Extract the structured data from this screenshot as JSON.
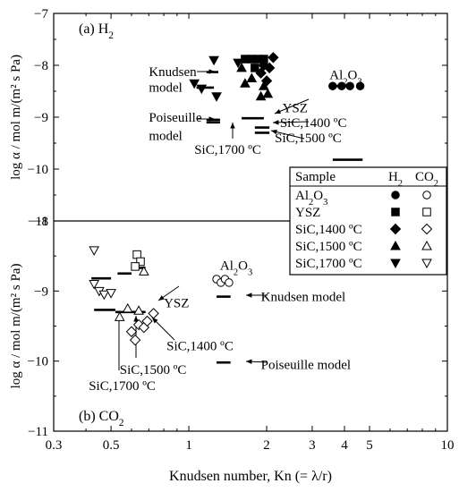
{
  "chart_data": {
    "type": "scatter",
    "x_scale": "log",
    "x_label": "Knudsen number, Kn (= λ/r)",
    "x_range": [
      0.3,
      10
    ],
    "x_ticks": [
      "0.3",
      "0.5",
      "1",
      "2",
      "3",
      "4",
      "5",
      "10"
    ],
    "x_tick_values": [
      0.3,
      0.5,
      1,
      2,
      3,
      4,
      5,
      10
    ],
    "legend": {
      "position": "right",
      "header": [
        "Sample",
        "H2",
        "CO2"
      ],
      "rows": [
        {
          "label": "Al2O3",
          "filled": "circle",
          "open": "circle"
        },
        {
          "label": "YSZ",
          "filled": "square",
          "open": "square"
        },
        {
          "label": "SiC,1400 ºC",
          "filled": "diamond",
          "open": "diamond"
        },
        {
          "label": "SiC,1500 ºC",
          "filled": "triangle-up",
          "open": "triangle-up"
        },
        {
          "label": "SiC,1700 ºC",
          "filled": "triangle-down",
          "open": "triangle-down"
        }
      ]
    },
    "panels": [
      {
        "id": "a",
        "title": "(a) H2",
        "y_label": "log α / mol m/(m² s Pa)",
        "y_range": [
          -11,
          -7
        ],
        "y_ticks": [
          "−7",
          "−8",
          "−9",
          "−10",
          "−11"
        ],
        "y_tick_values": [
          -7,
          -8,
          -9,
          -10,
          -11
        ],
        "series": [
          {
            "name": "Al2O3",
            "marker": "circle",
            "filled": true,
            "points": [
              [
                3.6,
                -8.4
              ],
              [
                3.9,
                -8.4
              ],
              [
                4.2,
                -8.4
              ],
              [
                4.6,
                -8.4
              ]
            ]
          },
          {
            "name": "YSZ",
            "marker": "square",
            "filled": true,
            "points": [
              [
                1.65,
                -7.88
              ],
              [
                1.75,
                -7.88
              ],
              [
                1.85,
                -7.88
              ],
              [
                1.95,
                -7.88
              ],
              [
                1.8,
                -8.05
              ]
            ]
          },
          {
            "name": "SiC,1400 ºC",
            "marker": "diamond",
            "filled": true,
            "points": [
              [
                2.12,
                -7.85
              ],
              [
                1.95,
                -8.0
              ],
              [
                2.05,
                -8.05
              ],
              [
                1.9,
                -8.15
              ],
              [
                2.0,
                -8.3
              ]
            ]
          },
          {
            "name": "SiC,1500 ºC",
            "marker": "triangle-up",
            "filled": true,
            "points": [
              [
                1.6,
                -8.05
              ],
              [
                1.65,
                -8.35
              ],
              [
                1.75,
                -8.25
              ],
              [
                1.95,
                -8.4
              ],
              [
                2.02,
                -8.55
              ],
              [
                1.9,
                -8.6
              ]
            ]
          },
          {
            "name": "SiC,1700 ºC",
            "marker": "triangle-down",
            "filled": true,
            "points": [
              [
                1.25,
                -7.9
              ],
              [
                1.55,
                -7.95
              ],
              [
                1.05,
                -8.35
              ],
              [
                1.12,
                -8.45
              ],
              [
                1.28,
                -8.6
              ]
            ]
          }
        ],
        "model_lines": [
          {
            "model": "Knudsen",
            "segments": [
              [
                1.17,
                1.3,
                -8.13
              ],
              [
                1.07,
                1.25,
                -8.43
              ],
              [
                1.6,
                1.95,
                -7.88
              ],
              [
                3.6,
                4.1,
                -8.4
              ]
            ]
          },
          {
            "model": "Poiseuille",
            "segments": [
              [
                1.17,
                1.32,
                -9.05
              ],
              [
                1.17,
                1.32,
                -9.1
              ],
              [
                1.6,
                1.95,
                -9.02
              ],
              [
                1.8,
                2.05,
                -9.2
              ],
              [
                1.8,
                2.05,
                -9.3
              ],
              [
                3.6,
                4.7,
                -9.82
              ]
            ]
          }
        ],
        "annotations": [
          {
            "text": "Knudsen",
            "kn": 0.7,
            "y": -8.12
          },
          {
            "text": "model",
            "kn": 0.7,
            "y": -8.42
          },
          {
            "text": "Poiseuille",
            "kn": 0.7,
            "y": -9.0
          },
          {
            "text": "model",
            "kn": 0.7,
            "y": -9.35
          },
          {
            "text": "YSZ",
            "kn": 2.3,
            "y": -8.82
          },
          {
            "text": "SiC,1400 ºC",
            "kn": 2.25,
            "y": -9.1
          },
          {
            "text": "SiC,1500 ºC",
            "kn": 2.15,
            "y": -9.4
          },
          {
            "text": "SiC,1700 ºC",
            "kn": 1.05,
            "y": -9.62
          },
          {
            "text": "Al2O3",
            "kn": 3.5,
            "y": -8.18
          }
        ]
      },
      {
        "id": "b",
        "title": "(b) CO2",
        "y_label": "log α / mol m/(m² s Pa)",
        "y_range": [
          -11,
          -8
        ],
        "y_ticks": [
          "−8",
          "−9",
          "−10",
          "−11"
        ],
        "y_tick_values": [
          -8,
          -9,
          -10,
          -11
        ],
        "series": [
          {
            "name": "Al2O3",
            "marker": "circle",
            "filled": false,
            "points": [
              [
                1.28,
                -8.83
              ],
              [
                1.33,
                -8.88
              ],
              [
                1.38,
                -8.83
              ],
              [
                1.43,
                -8.88
              ]
            ]
          },
          {
            "name": "YSZ",
            "marker": "square",
            "filled": false,
            "points": [
              [
                0.63,
                -8.48
              ],
              [
                0.65,
                -8.58
              ],
              [
                0.62,
                -8.65
              ]
            ]
          },
          {
            "name": "SiC,1400 ºC",
            "marker": "diamond",
            "filled": false,
            "points": [
              [
                0.6,
                -9.58
              ],
              [
                0.64,
                -9.48
              ],
              [
                0.67,
                -9.52
              ],
              [
                0.69,
                -9.43
              ],
              [
                0.62,
                -9.7
              ],
              [
                0.73,
                -9.32
              ]
            ]
          },
          {
            "name": "SiC,1500 ºC",
            "marker": "triangle-up",
            "filled": false,
            "points": [
              [
                0.54,
                -9.37
              ],
              [
                0.58,
                -9.25
              ],
              [
                0.64,
                -9.28
              ],
              [
                0.67,
                -8.72
              ]
            ]
          },
          {
            "name": "SiC,1700 ºC",
            "marker": "triangle-down",
            "filled": false,
            "points": [
              [
                0.43,
                -8.42
              ],
              [
                0.43,
                -8.9
              ],
              [
                0.45,
                -9.0
              ],
              [
                0.47,
                -9.05
              ],
              [
                0.5,
                -9.03
              ]
            ]
          }
        ],
        "model_lines": [
          {
            "model": "Knudsen",
            "segments": [
              [
                0.42,
                0.5,
                -8.82
              ],
              [
                0.53,
                0.6,
                -8.75
              ],
              [
                0.6,
                0.68,
                -8.67
              ],
              [
                1.28,
                1.45,
                -9.08
              ]
            ]
          },
          {
            "model": "Poiseuille",
            "segments": [
              [
                0.43,
                0.52,
                -9.27
              ],
              [
                0.52,
                0.6,
                -9.3
              ],
              [
                0.6,
                0.68,
                -9.3
              ],
              [
                1.28,
                1.45,
                -10.02
              ]
            ]
          }
        ],
        "annotations": [
          {
            "text": "Al2O3",
            "kn": 1.32,
            "y": -8.63
          },
          {
            "text": "YSZ",
            "kn": 0.8,
            "y": -9.17
          },
          {
            "text": "Knudsen model",
            "kn": 1.9,
            "y": -9.08
          },
          {
            "text": "SiC,1400 ºC",
            "kn": 0.82,
            "y": -9.78
          },
          {
            "text": "SiC,1500 ºC",
            "kn": 0.54,
            "y": -10.12
          },
          {
            "text": "SiC,1700 ºC",
            "kn": 0.41,
            "y": -10.35
          },
          {
            "text": "Poiseuille model",
            "kn": 1.9,
            "y": -10.05
          }
        ]
      }
    ]
  }
}
